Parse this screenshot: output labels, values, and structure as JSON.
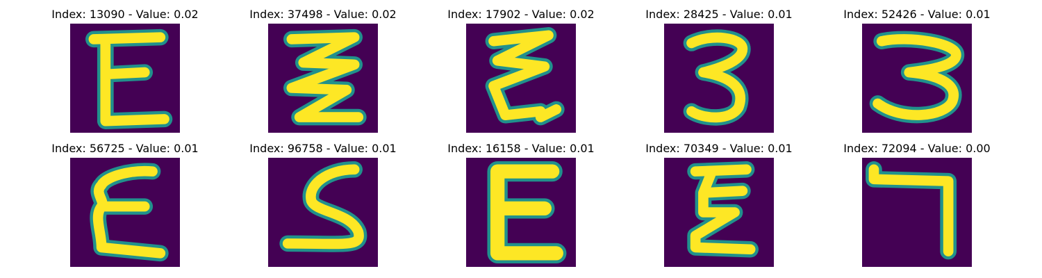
{
  "colors": {
    "background": "#440154",
    "stroke": "#fde725",
    "edge": "#21918c"
  },
  "items": [
    {
      "index": "13090",
      "value": "0.02",
      "title": "Index: 13090 - Value: 0.02",
      "glyph": "E"
    },
    {
      "index": "37498",
      "value": "0.02",
      "title": "Index: 37498 - Value: 0.02",
      "glyph": "Z-stack"
    },
    {
      "index": "17902",
      "value": "0.02",
      "title": "Index: 17902 - Value: 0.02",
      "glyph": "Z-curl"
    },
    {
      "index": "28425",
      "value": "0.01",
      "title": "Index: 28425 - Value: 0.01",
      "glyph": "3"
    },
    {
      "index": "52426",
      "value": "0.01",
      "title": "Index: 52426 - Value: 0.01",
      "glyph": "3-wide"
    },
    {
      "index": "56725",
      "value": "0.01",
      "title": "Index: 56725 - Value: 0.01",
      "glyph": "E-curly"
    },
    {
      "index": "96758",
      "value": "0.01",
      "title": "Index: 96758 - Value: 0.01",
      "glyph": "S"
    },
    {
      "index": "16158",
      "value": "0.01",
      "title": "Index: 16158 - Value: 0.01",
      "glyph": "E-bold"
    },
    {
      "index": "70349",
      "value": "0.01",
      "title": "Index: 70349 - Value: 0.01",
      "glyph": "Z-narrow"
    },
    {
      "index": "72094",
      "value": "0.00",
      "title": "Index: 72094 - Value: 0.00",
      "glyph": "7"
    }
  ]
}
